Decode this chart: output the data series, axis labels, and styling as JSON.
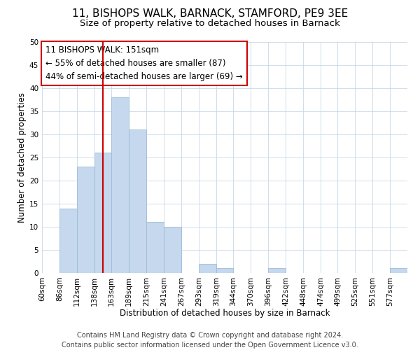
{
  "title": "11, BISHOPS WALK, BARNACK, STAMFORD, PE9 3EE",
  "subtitle": "Size of property relative to detached houses in Barnack",
  "xlabel": "Distribution of detached houses by size in Barnack",
  "ylabel": "Number of detached properties",
  "bin_labels": [
    "60sqm",
    "86sqm",
    "112sqm",
    "138sqm",
    "163sqm",
    "189sqm",
    "215sqm",
    "241sqm",
    "267sqm",
    "293sqm",
    "319sqm",
    "344sqm",
    "370sqm",
    "396sqm",
    "422sqm",
    "448sqm",
    "474sqm",
    "499sqm",
    "525sqm",
    "551sqm",
    "577sqm"
  ],
  "bin_edges": [
    60,
    86,
    112,
    138,
    163,
    189,
    215,
    241,
    267,
    293,
    319,
    344,
    370,
    396,
    422,
    448,
    474,
    499,
    525,
    551,
    577,
    603
  ],
  "counts": [
    0,
    14,
    23,
    26,
    38,
    31,
    11,
    10,
    0,
    2,
    1,
    0,
    0,
    1,
    0,
    0,
    0,
    0,
    0,
    0,
    1
  ],
  "bar_color": "#c5d8ed",
  "bar_edgecolor": "#a0bcd8",
  "ref_line_x": 151,
  "ref_line_color": "#cc0000",
  "annotation_title": "11 BISHOPS WALK: 151sqm",
  "annotation_line1": "← 55% of detached houses are smaller (87)",
  "annotation_line2": "44% of semi-detached houses are larger (69) →",
  "annotation_box_edgecolor": "#cc0000",
  "ylim": [
    0,
    50
  ],
  "yticks": [
    0,
    5,
    10,
    15,
    20,
    25,
    30,
    35,
    40,
    45,
    50
  ],
  "footer1": "Contains HM Land Registry data © Crown copyright and database right 2024.",
  "footer2": "Contains public sector information licensed under the Open Government Licence v3.0.",
  "bg_color": "#ffffff",
  "grid_color": "#c8d8e8",
  "title_fontsize": 11,
  "subtitle_fontsize": 9.5,
  "axis_label_fontsize": 8.5,
  "tick_fontsize": 7.5,
  "annotation_fontsize": 8.5,
  "footer_fontsize": 7
}
